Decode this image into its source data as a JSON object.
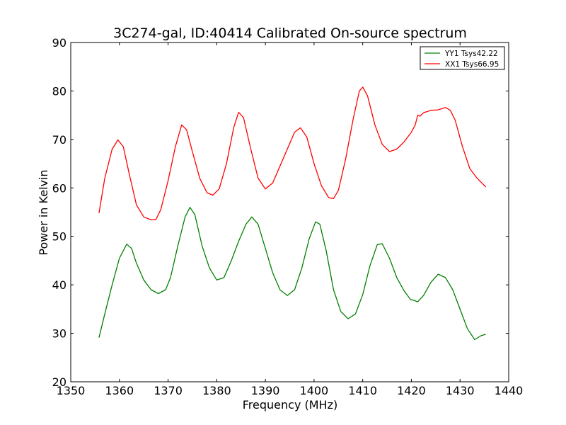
{
  "chart_data": {
    "type": "line",
    "title": "3C274-gal, ID:40414 Calibrated On-source spectrum",
    "xlabel": "Frequency (MHz)",
    "ylabel": "Power in Kelvin",
    "xlim": [
      1350,
      1440
    ],
    "ylim": [
      20,
      90
    ],
    "xticks": [
      1350,
      1360,
      1370,
      1380,
      1390,
      1400,
      1410,
      1420,
      1430,
      1440
    ],
    "yticks": [
      20,
      30,
      40,
      50,
      60,
      70,
      80,
      90
    ],
    "grid": false,
    "legend_position": "top-right",
    "series": [
      {
        "name": "YY1 Tsys42.22",
        "color": "#008000",
        "points": [
          [
            1355.8,
            29.1
          ],
          [
            1357.0,
            34.0
          ],
          [
            1358.5,
            40.0
          ],
          [
            1360.0,
            45.5
          ],
          [
            1361.5,
            48.4
          ],
          [
            1362.5,
            47.5
          ],
          [
            1363.5,
            44.5
          ],
          [
            1365.0,
            41.0
          ],
          [
            1366.5,
            39.0
          ],
          [
            1368.0,
            38.2
          ],
          [
            1369.5,
            39.0
          ],
          [
            1370.5,
            41.5
          ],
          [
            1372.0,
            48.0
          ],
          [
            1373.5,
            54.0
          ],
          [
            1374.5,
            56.0
          ],
          [
            1375.5,
            54.5
          ],
          [
            1377.0,
            48.0
          ],
          [
            1378.5,
            43.5
          ],
          [
            1380.0,
            41.0
          ],
          [
            1381.5,
            41.5
          ],
          [
            1383.0,
            45.0
          ],
          [
            1384.5,
            49.0
          ],
          [
            1386.0,
            52.5
          ],
          [
            1387.2,
            54.0
          ],
          [
            1388.5,
            52.5
          ],
          [
            1390.0,
            47.5
          ],
          [
            1391.5,
            42.5
          ],
          [
            1393.0,
            39.0
          ],
          [
            1394.5,
            37.8
          ],
          [
            1396.0,
            39.0
          ],
          [
            1397.5,
            43.5
          ],
          [
            1399.0,
            49.5
          ],
          [
            1400.3,
            53.0
          ],
          [
            1401.2,
            52.5
          ],
          [
            1402.5,
            47.0
          ],
          [
            1404.0,
            39.0
          ],
          [
            1405.5,
            34.5
          ],
          [
            1407.0,
            33.0
          ],
          [
            1408.5,
            34.0
          ],
          [
            1410.0,
            38.0
          ],
          [
            1411.5,
            44.0
          ],
          [
            1413.0,
            48.3
          ],
          [
            1414.0,
            48.5
          ],
          [
            1415.5,
            45.5
          ],
          [
            1417.0,
            41.5
          ],
          [
            1418.5,
            38.8
          ],
          [
            1419.8,
            37.0
          ],
          [
            1420.5,
            36.8
          ],
          [
            1421.3,
            36.5
          ],
          [
            1422.5,
            37.8
          ],
          [
            1424.0,
            40.5
          ],
          [
            1425.5,
            42.2
          ],
          [
            1427.0,
            41.5
          ],
          [
            1428.5,
            39.0
          ],
          [
            1430.0,
            35.0
          ],
          [
            1431.5,
            31.0
          ],
          [
            1433.0,
            28.7
          ],
          [
            1434.3,
            29.5
          ],
          [
            1435.3,
            29.8
          ]
        ]
      },
      {
        "name": "XX1 Tsys66.95",
        "color": "#ff0000",
        "points": [
          [
            1355.8,
            54.8
          ],
          [
            1357.0,
            62.0
          ],
          [
            1358.5,
            68.0
          ],
          [
            1359.7,
            69.9
          ],
          [
            1360.8,
            68.5
          ],
          [
            1362.0,
            63.0
          ],
          [
            1363.5,
            56.5
          ],
          [
            1365.0,
            54.0
          ],
          [
            1366.5,
            53.4
          ],
          [
            1367.5,
            53.5
          ],
          [
            1368.5,
            55.5
          ],
          [
            1370.0,
            61.5
          ],
          [
            1371.5,
            68.5
          ],
          [
            1372.8,
            73.0
          ],
          [
            1373.8,
            72.0
          ],
          [
            1375.0,
            67.5
          ],
          [
            1376.5,
            62.0
          ],
          [
            1378.0,
            59.0
          ],
          [
            1379.2,
            58.5
          ],
          [
            1380.5,
            59.8
          ],
          [
            1382.0,
            65.0
          ],
          [
            1383.5,
            72.5
          ],
          [
            1384.5,
            75.6
          ],
          [
            1385.5,
            74.5
          ],
          [
            1387.0,
            68.0
          ],
          [
            1388.5,
            62.0
          ],
          [
            1390.0,
            59.8
          ],
          [
            1391.5,
            61.0
          ],
          [
            1393.0,
            64.5
          ],
          [
            1394.5,
            68.0
          ],
          [
            1396.0,
            71.5
          ],
          [
            1397.2,
            72.4
          ],
          [
            1398.5,
            70.5
          ],
          [
            1400.0,
            65.0
          ],
          [
            1401.5,
            60.5
          ],
          [
            1403.0,
            58.0
          ],
          [
            1404.0,
            57.8
          ],
          [
            1405.0,
            59.5
          ],
          [
            1406.5,
            66.0
          ],
          [
            1408.0,
            74.0
          ],
          [
            1409.3,
            80.0
          ],
          [
            1410.0,
            80.8
          ],
          [
            1411.0,
            79.0
          ],
          [
            1412.5,
            73.0
          ],
          [
            1414.0,
            69.0
          ],
          [
            1415.5,
            67.5
          ],
          [
            1417.0,
            68.0
          ],
          [
            1418.5,
            69.5
          ],
          [
            1420.0,
            71.5
          ],
          [
            1420.8,
            73.0
          ],
          [
            1421.3,
            75.0
          ],
          [
            1421.8,
            74.8
          ],
          [
            1422.5,
            75.5
          ],
          [
            1424.0,
            76.0
          ],
          [
            1425.5,
            76.1
          ],
          [
            1427.0,
            76.6
          ],
          [
            1428.0,
            76.0
          ],
          [
            1429.0,
            74.0
          ],
          [
            1430.5,
            68.5
          ],
          [
            1432.0,
            64.0
          ],
          [
            1433.5,
            62.0
          ],
          [
            1435.3,
            60.2
          ]
        ]
      }
    ]
  }
}
